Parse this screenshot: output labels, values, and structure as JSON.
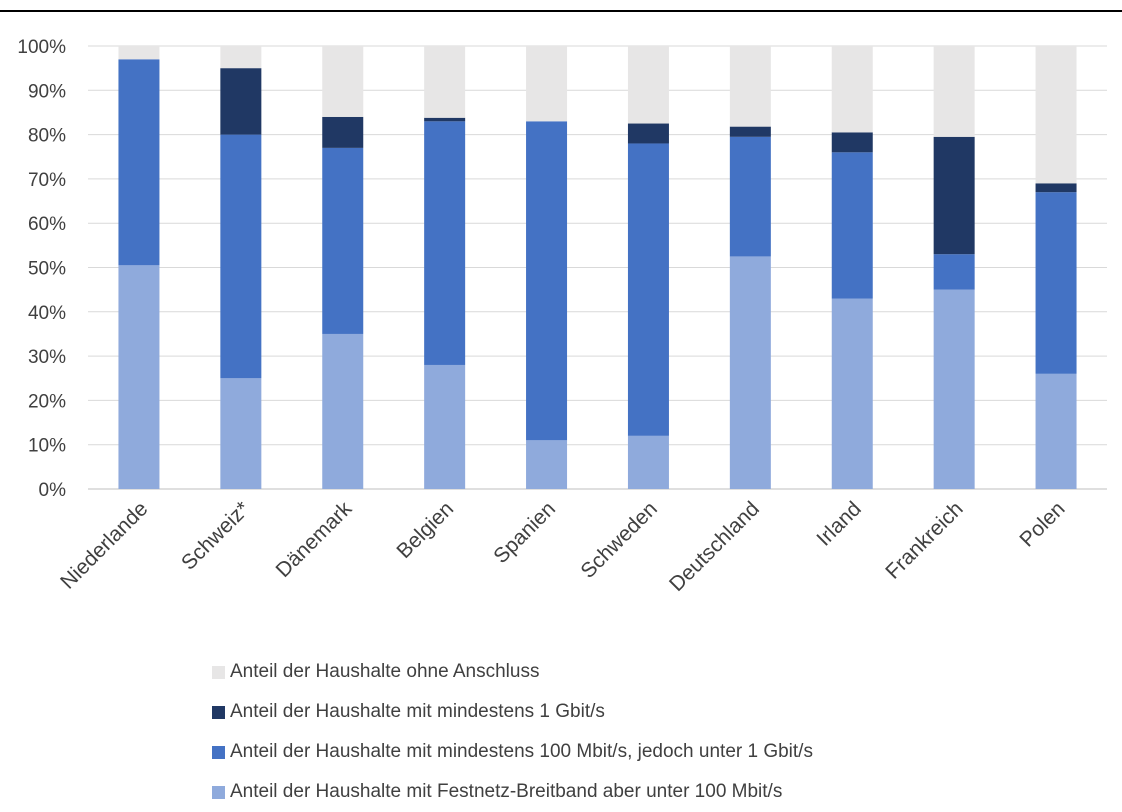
{
  "chart_data": {
    "type": "bar",
    "stacked": true,
    "categories": [
      "Niederlande",
      "Schweiz*",
      "Dänemark",
      "Belgien",
      "Spanien",
      "Schweden",
      "Deutschland",
      "Irland",
      "Frankreich",
      "Polen"
    ],
    "series": [
      {
        "name": "Anteil der Haushalte mit Festnetz-Breitband aber unter 100 Mbit/s",
        "color": "#8faadc",
        "values": [
          50.5,
          25,
          35,
          28,
          11,
          12,
          52.5,
          43,
          45,
          26
        ]
      },
      {
        "name": "Anteil der Haushalte mit mindestens 100 Mbit/s, jedoch unter 1 Gbit/s",
        "color": "#4472c4",
        "values": [
          46.5,
          55,
          42,
          55,
          72,
          66,
          27,
          33,
          8,
          41
        ]
      },
      {
        "name": "Anteil der Haushalte mit mindestens 1 Gbit/s",
        "color": "#203864",
        "values": [
          0,
          15,
          7,
          0.8,
          0,
          4.5,
          2.3,
          4.5,
          26.5,
          2
        ]
      },
      {
        "name": "Anteil der Haushalte ohne Anschluss",
        "color": "#e7e6e6",
        "values": [
          3,
          5,
          16,
          16.2,
          17,
          17.5,
          18.2,
          19.5,
          20.5,
          31
        ]
      }
    ],
    "legend_order": [
      3,
      2,
      1,
      0
    ],
    "y_ticks": [
      "0%",
      "10%",
      "20%",
      "30%",
      "40%",
      "50%",
      "60%",
      "70%",
      "80%",
      "90%",
      "100%"
    ],
    "ylim": [
      0,
      100
    ],
    "grid": true,
    "legend_position": "bottom",
    "title": "",
    "xlabel": "",
    "ylabel": ""
  }
}
